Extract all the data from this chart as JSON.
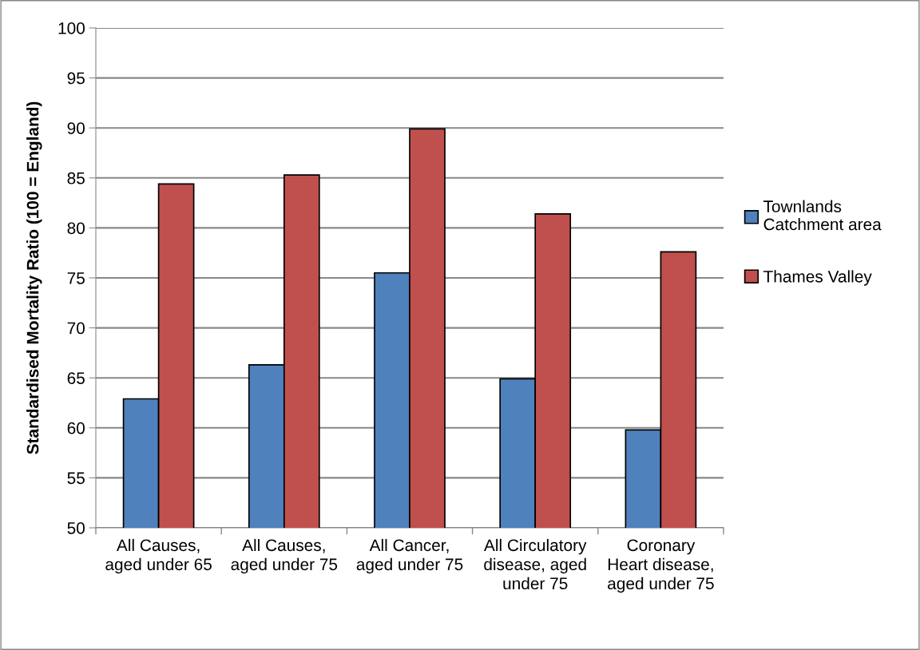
{
  "chart_data": {
    "type": "bar",
    "ylabel": "Standardised Mortality Ratio (100 = England)",
    "categories": [
      "All Causes,\naged under 65",
      "All Causes,\naged under 75",
      "All Cancer,\naged under 75",
      "All Circulatory\ndisease, aged\nunder 75",
      "Coronary\nHeart disease,\naged under 75"
    ],
    "series": [
      {
        "name": "Townlands\nCatchment area",
        "color": "#4f81bd",
        "values": [
          62.9,
          66.3,
          75.5,
          64.9,
          59.8
        ]
      },
      {
        "name": "Thames Valley",
        "color": "#c0504d",
        "values": [
          84.4,
          85.3,
          89.9,
          81.4,
          77.6
        ]
      }
    ],
    "ylim": [
      50,
      100
    ],
    "yticks": [
      50,
      55,
      60,
      65,
      70,
      75,
      80,
      85,
      90,
      95,
      100
    ],
    "grid": "y",
    "legend": "right"
  }
}
